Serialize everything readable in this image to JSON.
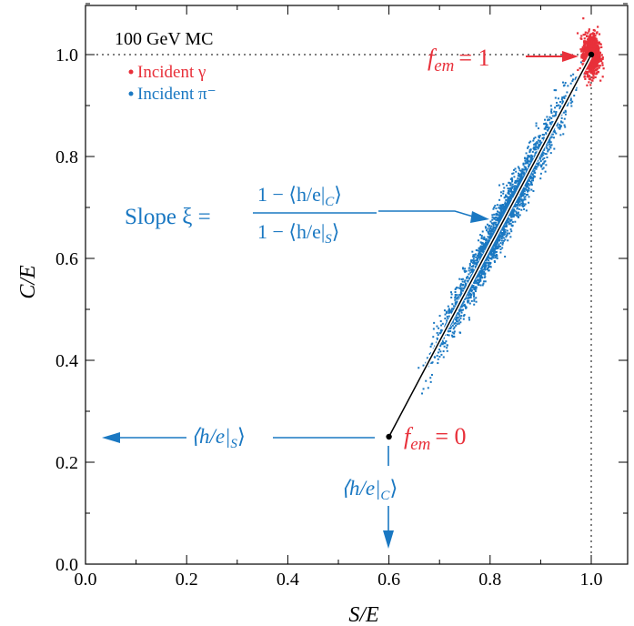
{
  "chart_data": {
    "type": "scatter",
    "title": "",
    "xlabel": "S/E",
    "ylabel": "C/E",
    "xlim": [
      0.0,
      1.1
    ],
    "ylim": [
      0.0,
      1.1
    ],
    "x_ticks": [
      0.0,
      0.2,
      0.4,
      0.6,
      0.8,
      1.0
    ],
    "y_ticks": [
      0.0,
      0.2,
      0.4,
      0.6,
      0.8,
      1.0
    ],
    "x_tick_labels": [
      "0.0",
      "0.2",
      "0.4",
      "0.6",
      "0.8",
      "1.0"
    ],
    "y_tick_labels": [
      "0.0",
      "0.2",
      "0.4",
      "0.6",
      "0.8",
      "1.0"
    ],
    "header": "100 GeV MC",
    "legend_position": "top-left",
    "series": [
      {
        "name": "Incident γ",
        "color": "#e8303a",
        "center": [
          1.0,
          1.0
        ],
        "spread": [
          0.008,
          0.02
        ]
      },
      {
        "name": "Incident π⁻",
        "color": "#1a78c2",
        "line_from": [
          0.6,
          0.25
        ],
        "line_to": [
          1.0,
          1.0
        ],
        "x_range": [
          0.68,
          0.96
        ],
        "spread": 0.022
      }
    ],
    "line": {
      "from": [
        0.6,
        0.25
      ],
      "to": [
        1.0,
        1.0
      ],
      "color": "#000000"
    },
    "reference_lines": {
      "y": 1.0,
      "x": 1.0,
      "style": "dotted"
    },
    "annotations": {
      "fem1_label": "f",
      "fem1_sub": "em",
      "fem1_value": "= 1",
      "fem0_label": "f",
      "fem0_sub": "em",
      "fem0_value": "= 0",
      "slope_label": "Slope ξ =",
      "slope_numerator": "1 − ⟨h/e|",
      "slope_num_sub": "C",
      "slope_denominator": "1 − ⟨h/e|",
      "slope_den_sub": "S",
      "hs_label": "⟨h/e|",
      "hs_sub": "S",
      "hc_label": "⟨h/e|",
      "hc_sub": "C",
      "close": "⟩"
    },
    "colors": {
      "gamma": "#e8303a",
      "pion": "#1a78c2",
      "axis": "#000000"
    }
  }
}
